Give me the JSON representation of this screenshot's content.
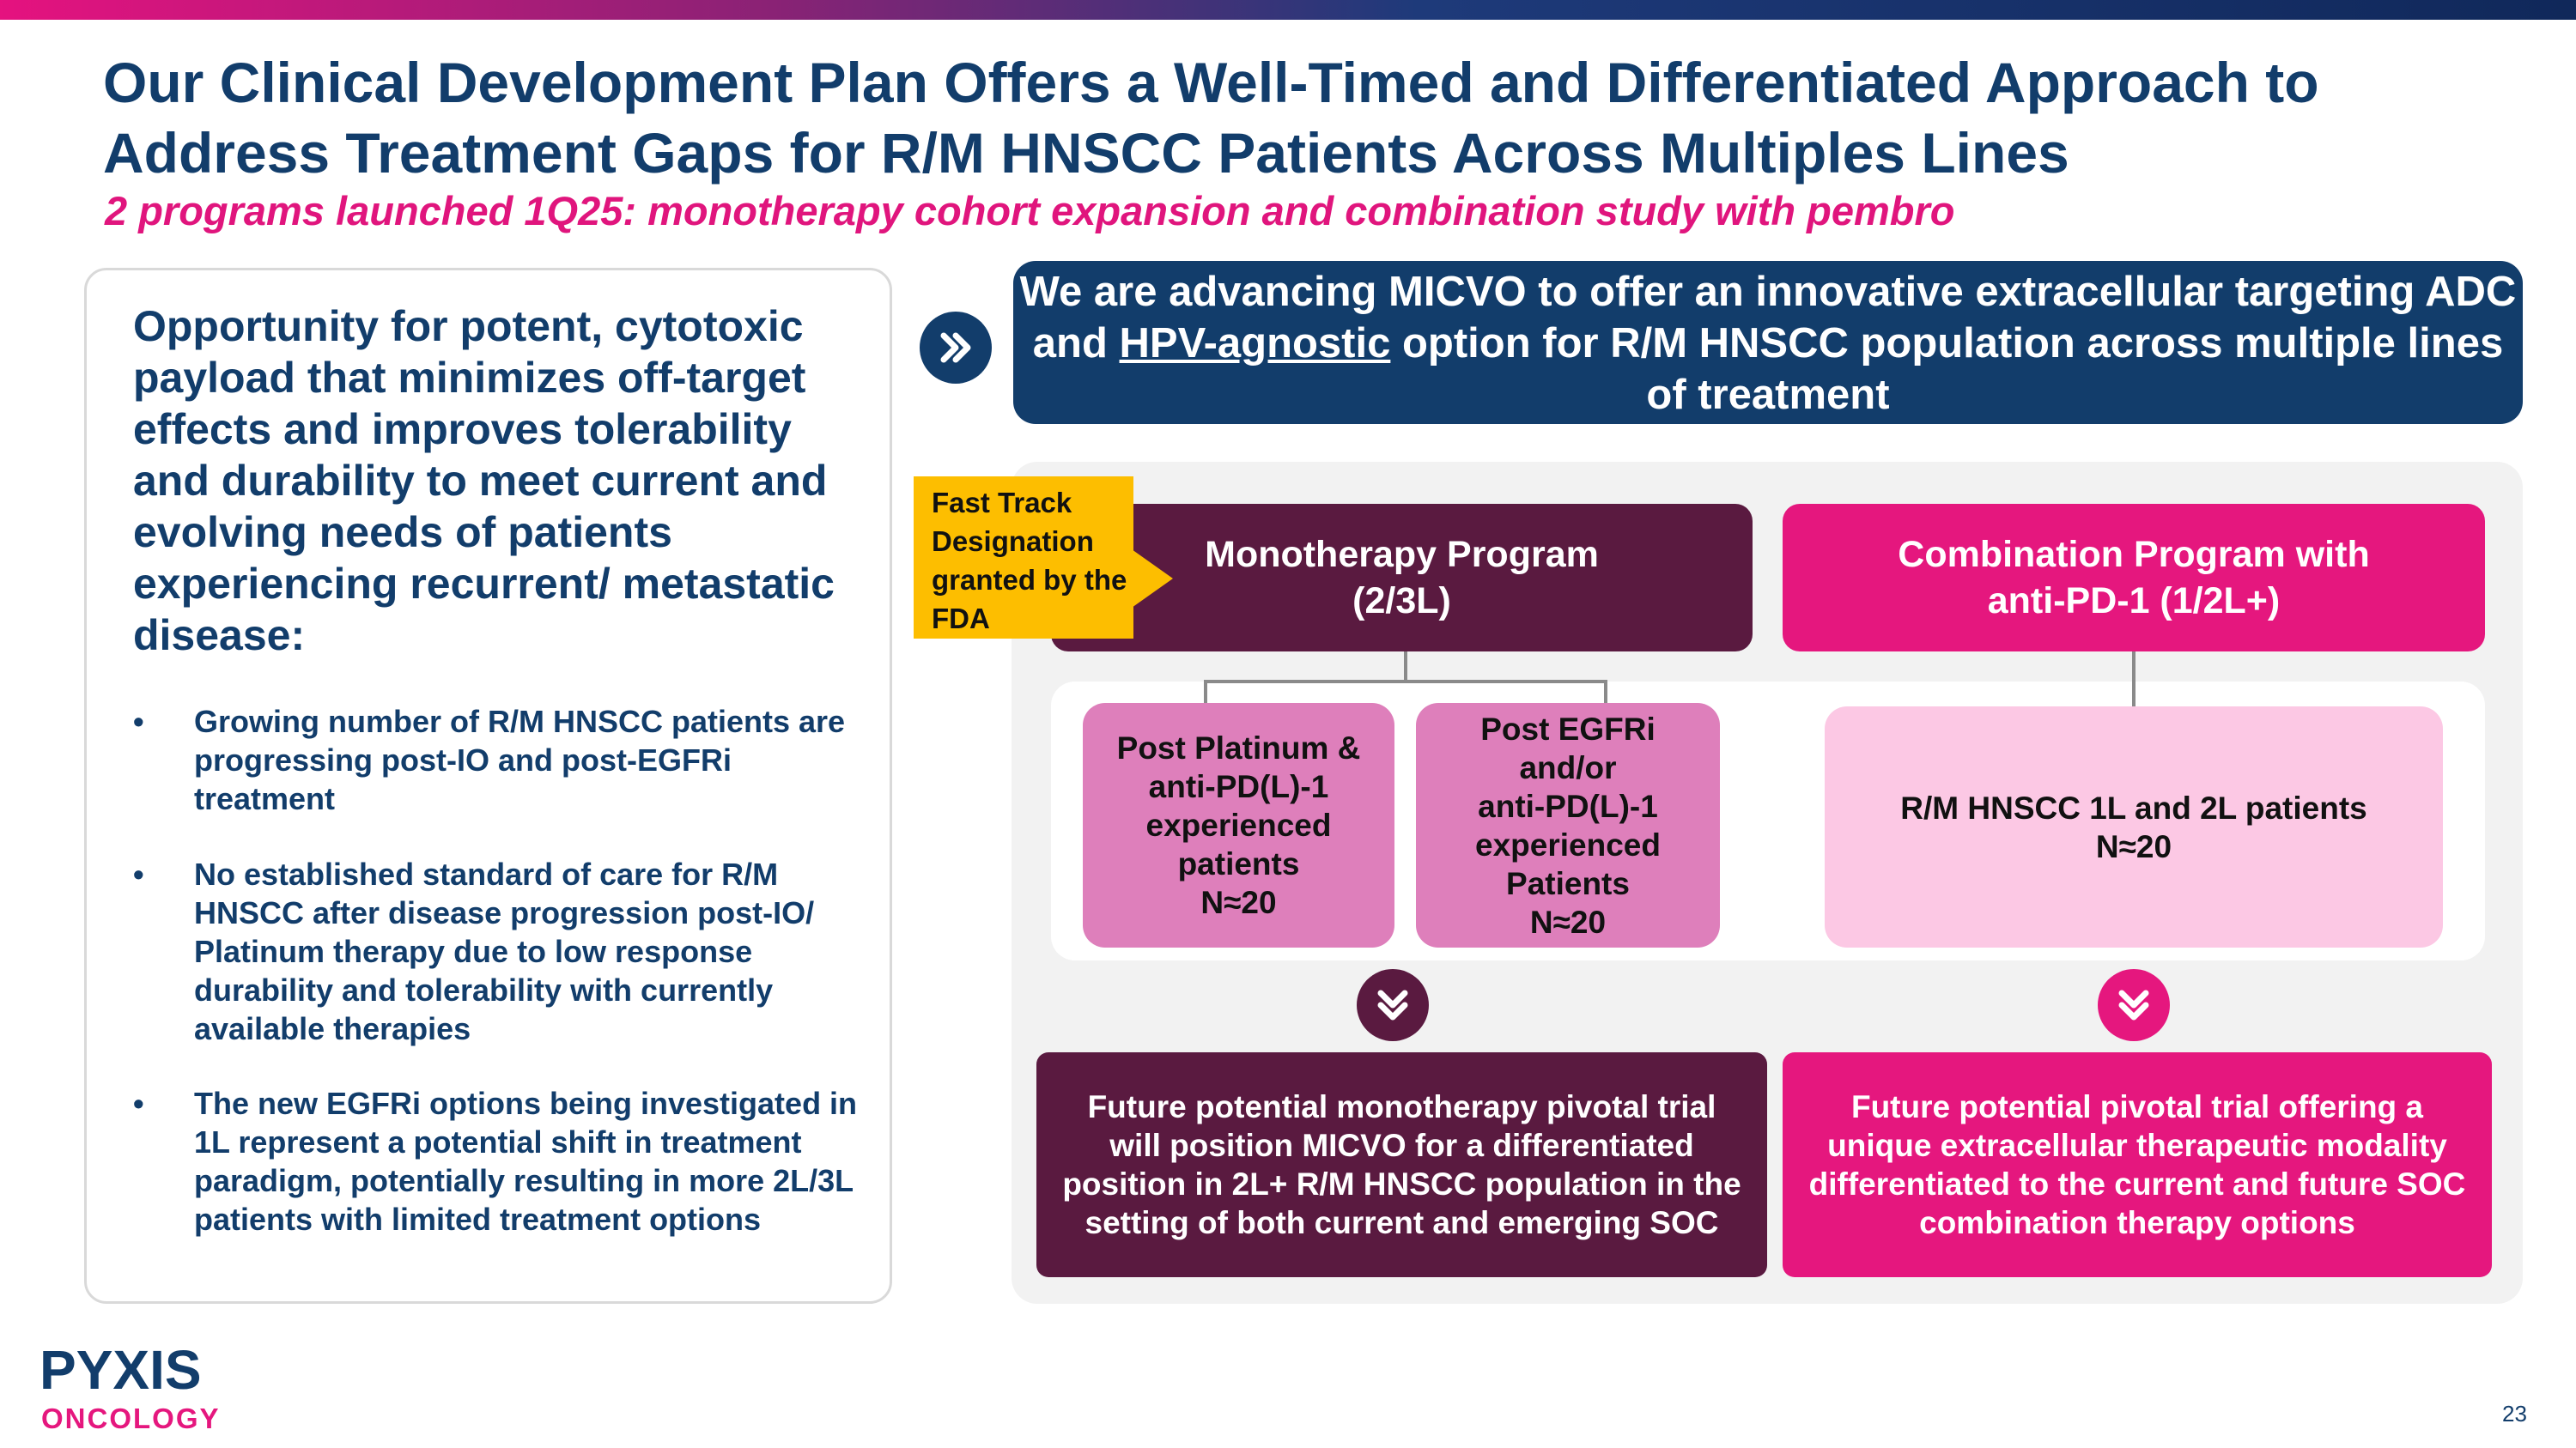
{
  "title": "Our Clinical Development Plan Offers a Well-Timed and Differentiated Approach to Address Treatment Gaps for R/M HNSCC Patients Across Multiples Lines",
  "subtitle": "2 programs launched 1Q25: monotherapy cohort expansion and combination study with pembro",
  "left_panel": {
    "heading": "Opportunity for potent, cytotoxic payload that minimizes off-target effects and improves tolerability and durability to meet current and evolving needs of patients experiencing recurrent/ metastatic disease:",
    "bullets": [
      "Growing number of R/M HNSCC patients are progressing post-IO and post-EGFRi treatment",
      "No established standard of care for R/M HNSCC after disease progression post-IO/ Platinum therapy due to low response durability and tolerability with currently available therapies",
      "The new EGFRi options being investigated in 1L represent a potential shift in treatment paradigm, potentially resulting in more 2L/3L patients with limited treatment options"
    ],
    "bullet_char": "•"
  },
  "banner": {
    "before": "We are advancing MICVO to offer an innovative extracellular targeting ADC and ",
    "underlined": "HPV-agnostic",
    "after": " option for R/M HNSCC population across multiple lines of treatment"
  },
  "fast_track": "Fast Track Designation granted by the FDA",
  "mono": {
    "title": "Monotherapy Program",
    "subtitle": "(2/3L)",
    "cohorts": [
      {
        "lines": [
          "Post Platinum &",
          "anti-PD(L)-1",
          "experienced",
          "patients",
          "N≈20"
        ]
      },
      {
        "lines": [
          "Post EGFRi",
          "and/or",
          "anti-PD(L)-1",
          "experienced",
          "Patients",
          "N≈20"
        ]
      }
    ],
    "future": "Future potential monotherapy pivotal trial will position MICVO for a differentiated position in 2L+ R/M HNSCC population in the setting of both current and emerging SOC"
  },
  "combo": {
    "title": "Combination Program with",
    "subtitle": "anti-PD-1 (1/2L+)",
    "cohort": {
      "line1": "R/M HNSCC 1L and 2L patients",
      "line2": "N≈20"
    },
    "future": "Future potential pivotal trial offering a unique extracellular therapeutic modality differentiated to the current and future SOC combination therapy options"
  },
  "icons": {
    "arrow": "double-chevron-right-icon",
    "down": "double-chevron-down-icon"
  },
  "logo": {
    "word1": "PYXIS",
    "word2": "ONCOLOGY"
  },
  "page_number": "23",
  "colors": {
    "navy": "#123d6b",
    "pink": "#e5177e",
    "plum": "#5a1a40",
    "gold": "#fdbe00"
  }
}
